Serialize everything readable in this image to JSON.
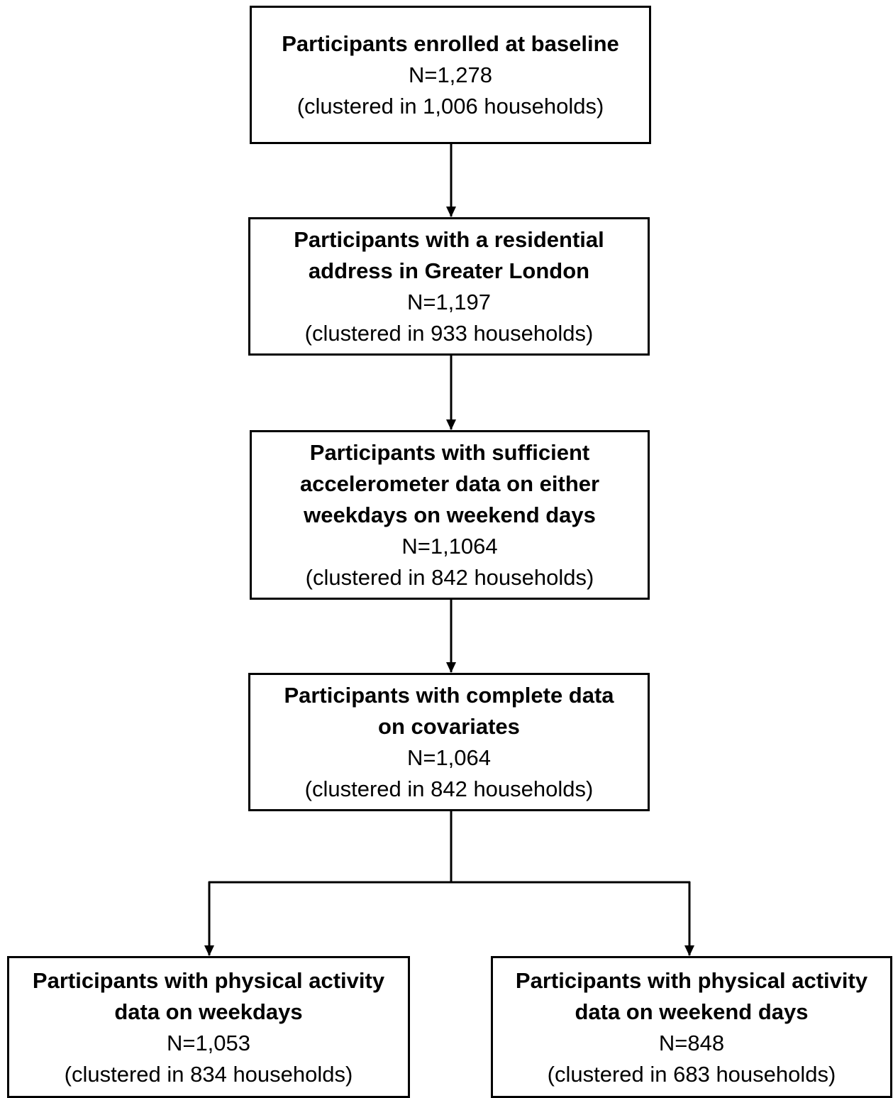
{
  "boxes": [
    {
      "title": "Participants enrolled at baseline",
      "count": "N=1,278",
      "cluster": "(clustered in 1,006 households)"
    },
    {
      "title": "Participants with a residential\naddress in Greater London",
      "count": "N=1,197",
      "cluster": "(clustered in 933 households)"
    },
    {
      "title": "Participants with sufficient\naccelerometer data on either\nweekdays on weekend days",
      "count": "N=1,1064",
      "cluster": "(clustered in 842 households)"
    },
    {
      "title": "Participants with complete data\non covariates",
      "count": "N=1,064",
      "cluster": "(clustered in 842 households)"
    },
    {
      "title": "Participants with physical activity\ndata on weekdays",
      "count": "N=1,053",
      "cluster": "(clustered in 834 households)"
    },
    {
      "title": "Participants with physical activity\ndata on weekend days",
      "count": "N=848",
      "cluster": "(clustered in 683 households)"
    }
  ],
  "edges": [
    [
      "Participants enrolled at baseline",
      "Participants with a residential address in Greater London"
    ],
    [
      "Participants with a residential address in Greater London",
      "Participants with sufficient accelerometer data on either weekdays on weekend days"
    ],
    [
      "Participants with sufficient accelerometer data on either weekdays on weekend days",
      "Participants with complete data on covariates"
    ],
    [
      "Participants with complete data on covariates",
      "Participants with physical activity data on weekdays"
    ],
    [
      "Participants with complete data on covariates",
      "Participants with physical activity data on weekend days"
    ]
  ],
  "colors": {
    "line": "#000000",
    "box_border": "#000000",
    "background": "#ffffff"
  }
}
